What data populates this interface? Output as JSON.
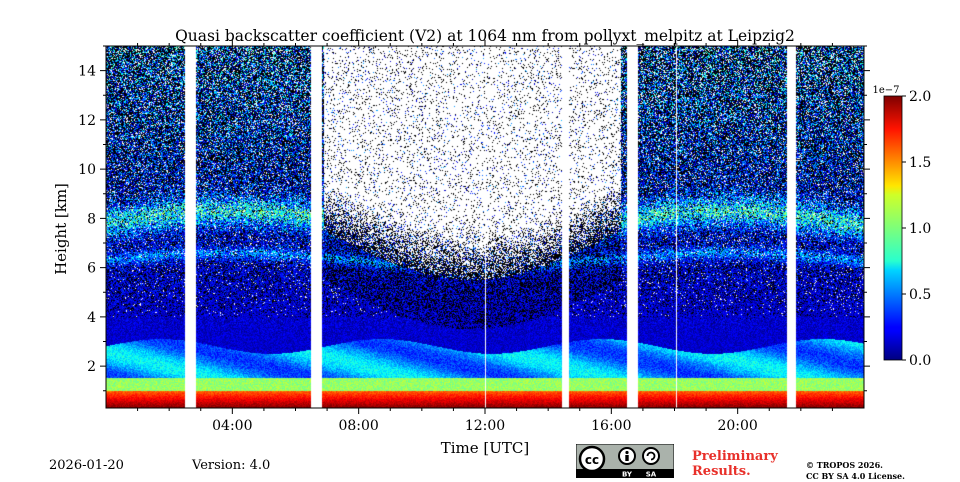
{
  "chart_data": {
    "type": "heatmap",
    "title": "Quasi backscatter coefficient (V2) at 1064 nm from pollyxt_melpitz at Leipzig2",
    "xlabel": "Time [UTC]",
    "ylabel": "Height [km]",
    "xlim_hours": [
      0,
      24
    ],
    "ylim_km": [
      0.3,
      15
    ],
    "x_ticks": [
      {
        "value": 4,
        "label": "04:00"
      },
      {
        "value": 8,
        "label": "08:00"
      },
      {
        "value": 12,
        "label": "12:00"
      },
      {
        "value": 16,
        "label": "16:00"
      },
      {
        "value": 20,
        "label": "20:00"
      }
    ],
    "y_ticks": [
      {
        "value": 2,
        "label": "2"
      },
      {
        "value": 4,
        "label": "4"
      },
      {
        "value": 6,
        "label": "6"
      },
      {
        "value": 8,
        "label": "8"
      },
      {
        "value": 10,
        "label": "10"
      },
      {
        "value": 12,
        "label": "12"
      },
      {
        "value": 14,
        "label": "14"
      }
    ],
    "colorbar": {
      "min": 0.0,
      "max": 2.0,
      "exponent_label": "1e−7",
      "ticks": [
        {
          "value": 0.0,
          "label": "0.0"
        },
        {
          "value": 0.5,
          "label": "0.5"
        },
        {
          "value": 1.0,
          "label": "1.0"
        },
        {
          "value": 1.5,
          "label": "1.5"
        },
        {
          "value": 2.0,
          "label": "2.0"
        }
      ],
      "colormap": "jet"
    },
    "data_gaps_hours": [
      [
        2.5,
        2.85
      ],
      [
        6.5,
        6.85
      ],
      [
        14.45,
        14.65
      ],
      [
        16.5,
        16.85
      ],
      [
        21.55,
        21.85
      ]
    ],
    "thin_gaps_hours": [
      12.0,
      18.05
    ],
    "features": {
      "surface_layer_top_km": 1.0,
      "boundary_layer_top_km": 2.8,
      "aerosol_layer_km": [
        7.3,
        8.3
      ],
      "noise_dominated_window_hours": [
        6.9,
        16.3
      ],
      "noise_dominated_above_km": 5.5
    }
  },
  "footer": {
    "date": "2026-01-20",
    "version": "Version: 4.0",
    "preliminary": "Preliminary",
    "results": "Results.",
    "copyright": "© TROPOS 2026.",
    "license": "CC BY SA 4.0 License.",
    "cc_label": "cc",
    "by_label": "BY",
    "sa_label": "SA"
  }
}
